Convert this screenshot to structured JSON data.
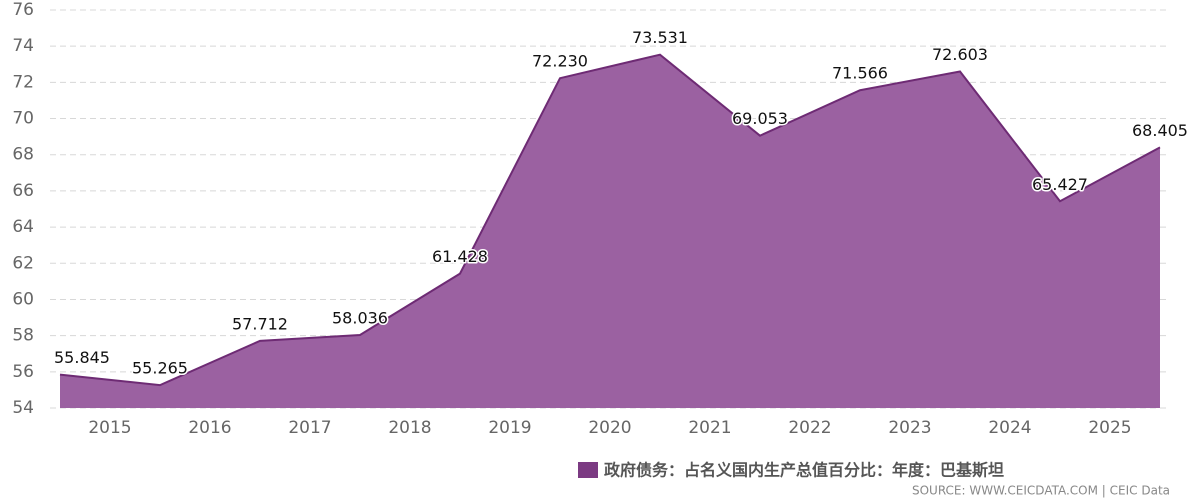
{
  "chart_data": {
    "type": "area",
    "categories": [
      "2015",
      "2016",
      "2017",
      "2018",
      "2019",
      "2020",
      "2021",
      "2022",
      "2023",
      "2024",
      "2025",
      null
    ],
    "series": [
      {
        "name": "政府债务：占名义国内生产总值百分比：年度：巴基斯坦",
        "color": "#9b61a1",
        "line_color": "#6e2b74",
        "values": [
          55.845,
          55.265,
          57.712,
          58.036,
          61.428,
          72.23,
          73.531,
          69.053,
          71.566,
          72.603,
          65.427,
          68.405
        ],
        "value_labels": [
          "55.845",
          "55.265",
          "57.712",
          "58.036",
          "61.428",
          "72.230",
          "73.531",
          "69.053",
          "71.566",
          "72.603",
          "65.427",
          "68.405"
        ]
      }
    ],
    "ylim": [
      54,
      76
    ],
    "yticks": [
      54,
      56,
      58,
      60,
      62,
      64,
      66,
      68,
      70,
      72,
      74,
      76
    ],
    "grid": true,
    "legend_color": "#7b3a82",
    "source": "SOURCE: WWW.CEICDATA.COM | CEIC Data"
  }
}
